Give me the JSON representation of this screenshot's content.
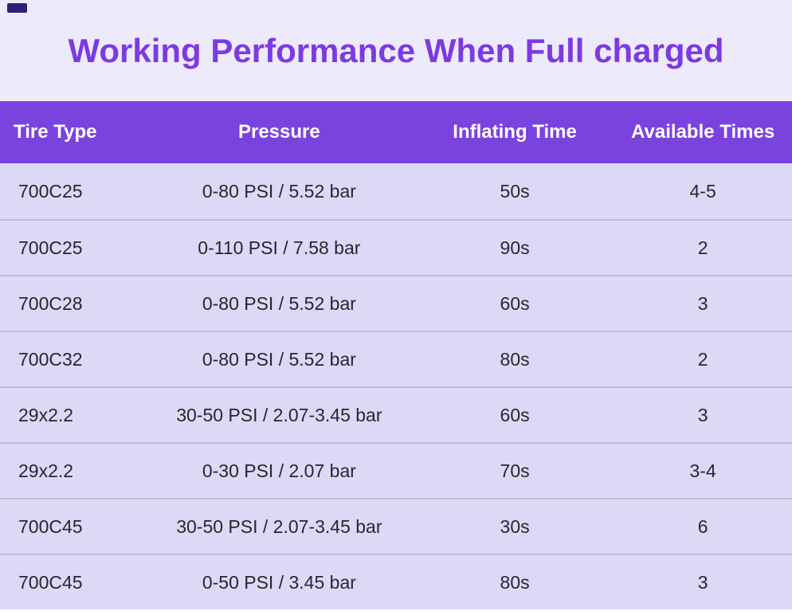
{
  "chart_data": {
    "type": "table",
    "title": "Working Performance When Full charged",
    "columns": [
      "Tire Type",
      "Pressure",
      "Inflating Time",
      "Available Times"
    ],
    "rows": [
      [
        "700C25",
        "0-80 PSI / 5.52 bar",
        "50s",
        "4-5"
      ],
      [
        "700C25",
        "0-110 PSI / 7.58 bar",
        "90s",
        "2"
      ],
      [
        "700C28",
        "0-80 PSI / 5.52 bar",
        "60s",
        "3"
      ],
      [
        "700C32",
        "0-80 PSI / 5.52 bar",
        "80s",
        "2"
      ],
      [
        "29x2.2",
        "30-50 PSI / 2.07-3.45 bar",
        "60s",
        "3"
      ],
      [
        "29x2.2",
        "0-30 PSI / 2.07 bar",
        "70s",
        "3-4"
      ],
      [
        "700C45",
        "30-50 PSI / 2.07-3.45 bar",
        "30s",
        "6"
      ],
      [
        "700C45",
        "0-50 PSI / 3.45 bar",
        "80s",
        "3"
      ]
    ]
  },
  "colors": {
    "page_bg": "#ECEAFB",
    "title_text": "#7B3AE3",
    "header_bg": "#7B43DE",
    "header_text": "#FFFFFF",
    "row_bg": "#DCD9F7",
    "row_text": "#28252F",
    "divider": "#BEBBD4",
    "footer_bg": "#FFFFFF",
    "corner_mark": "#2E2173"
  }
}
